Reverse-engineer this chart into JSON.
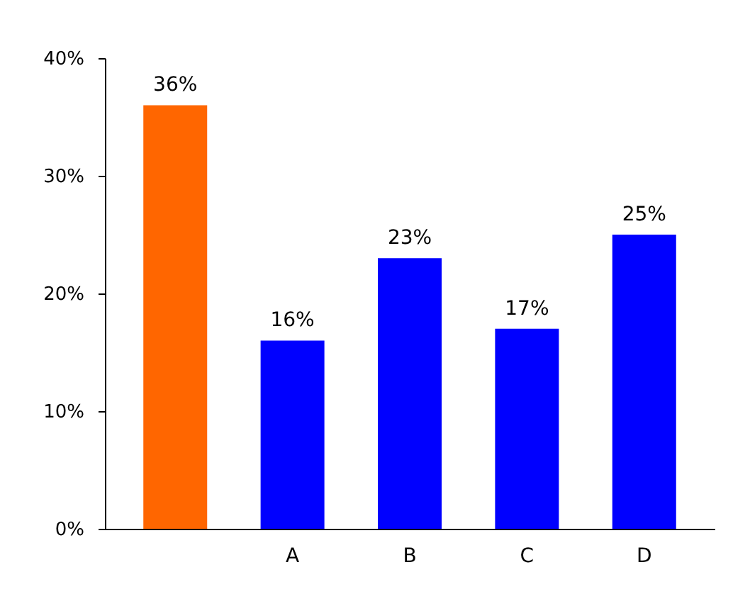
{
  "chart_data": {
    "type": "bar",
    "categories": [
      null,
      "A",
      "B",
      "C",
      "D"
    ],
    "values": [
      36,
      16,
      23,
      17,
      25
    ],
    "colors": [
      "#ff6600",
      "#0000ff",
      "#0000ff",
      "#0000ff",
      "#0000ff"
    ],
    "value_labels": [
      "36%",
      "16%",
      "23%",
      "17%",
      "25%"
    ],
    "ylim": [
      0,
      40
    ],
    "yticks": [
      {
        "value": 0,
        "label": "0%"
      },
      {
        "value": 10,
        "label": "10%"
      },
      {
        "value": 20,
        "label": "20%"
      },
      {
        "value": 30,
        "label": "30%"
      },
      {
        "value": 40,
        "label": "40%"
      }
    ],
    "grid": false
  }
}
